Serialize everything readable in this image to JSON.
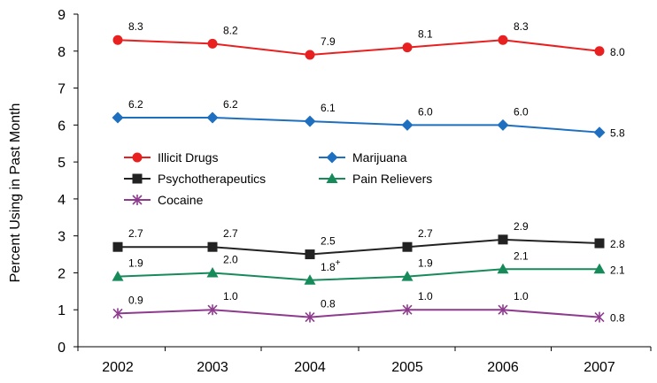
{
  "chart_data": {
    "type": "line",
    "title": "",
    "xlabel": "",
    "ylabel": "Percent Using in Past Month",
    "ylim": [
      0,
      9
    ],
    "yticks": [
      "0",
      "1",
      "2",
      "3",
      "4",
      "5",
      "6",
      "7",
      "8",
      "9"
    ],
    "categories": [
      "2002",
      "2003",
      "2004",
      "2005",
      "2006",
      "2007"
    ],
    "grid": false,
    "legend_position": "middle-left",
    "series": [
      {
        "name": "Illicit Drugs",
        "color": "#e8201f",
        "marker": "circle",
        "values": [
          8.3,
          8.2,
          7.9,
          8.1,
          8.3,
          8.0
        ],
        "labels": [
          "8.3",
          "8.2",
          "7.9",
          "8.1",
          "8.3",
          "8.0"
        ],
        "label_sup": [
          "",
          "",
          "",
          "",
          "",
          ""
        ]
      },
      {
        "name": "Marijuana",
        "color": "#1f6fc0",
        "marker": "diamond",
        "values": [
          6.2,
          6.2,
          6.1,
          6.0,
          6.0,
          5.8
        ],
        "labels": [
          "6.2",
          "6.2",
          "6.1",
          "6.0",
          "6.0",
          "5.8"
        ],
        "label_sup": [
          "",
          "",
          "",
          "",
          "",
          ""
        ]
      },
      {
        "name": "Psychotherapeutics",
        "color": "#222222",
        "marker": "square",
        "values": [
          2.7,
          2.7,
          2.5,
          2.7,
          2.9,
          2.8
        ],
        "labels": [
          "2.7",
          "2.7",
          "2.5",
          "2.7",
          "2.9",
          "2.8"
        ],
        "label_sup": [
          "",
          "",
          "",
          "",
          "",
          ""
        ]
      },
      {
        "name": "Pain Relievers",
        "color": "#178a5a",
        "marker": "triangle",
        "values": [
          1.9,
          2.0,
          1.8,
          1.9,
          2.1,
          2.1
        ],
        "labels": [
          "1.9",
          "2.0",
          "1.8",
          "1.9",
          "2.1",
          "2.1"
        ],
        "label_sup": [
          "",
          "",
          "+",
          "",
          "",
          ""
        ]
      },
      {
        "name": "Cocaine",
        "color": "#8e3b8e",
        "marker": "asterisk",
        "values": [
          0.9,
          1.0,
          0.8,
          1.0,
          1.0,
          0.8
        ],
        "labels": [
          "0.9",
          "1.0",
          "0.8",
          "1.0",
          "1.0",
          "0.8"
        ],
        "label_sup": [
          "",
          "",
          "",
          "",
          "",
          ""
        ]
      }
    ]
  }
}
